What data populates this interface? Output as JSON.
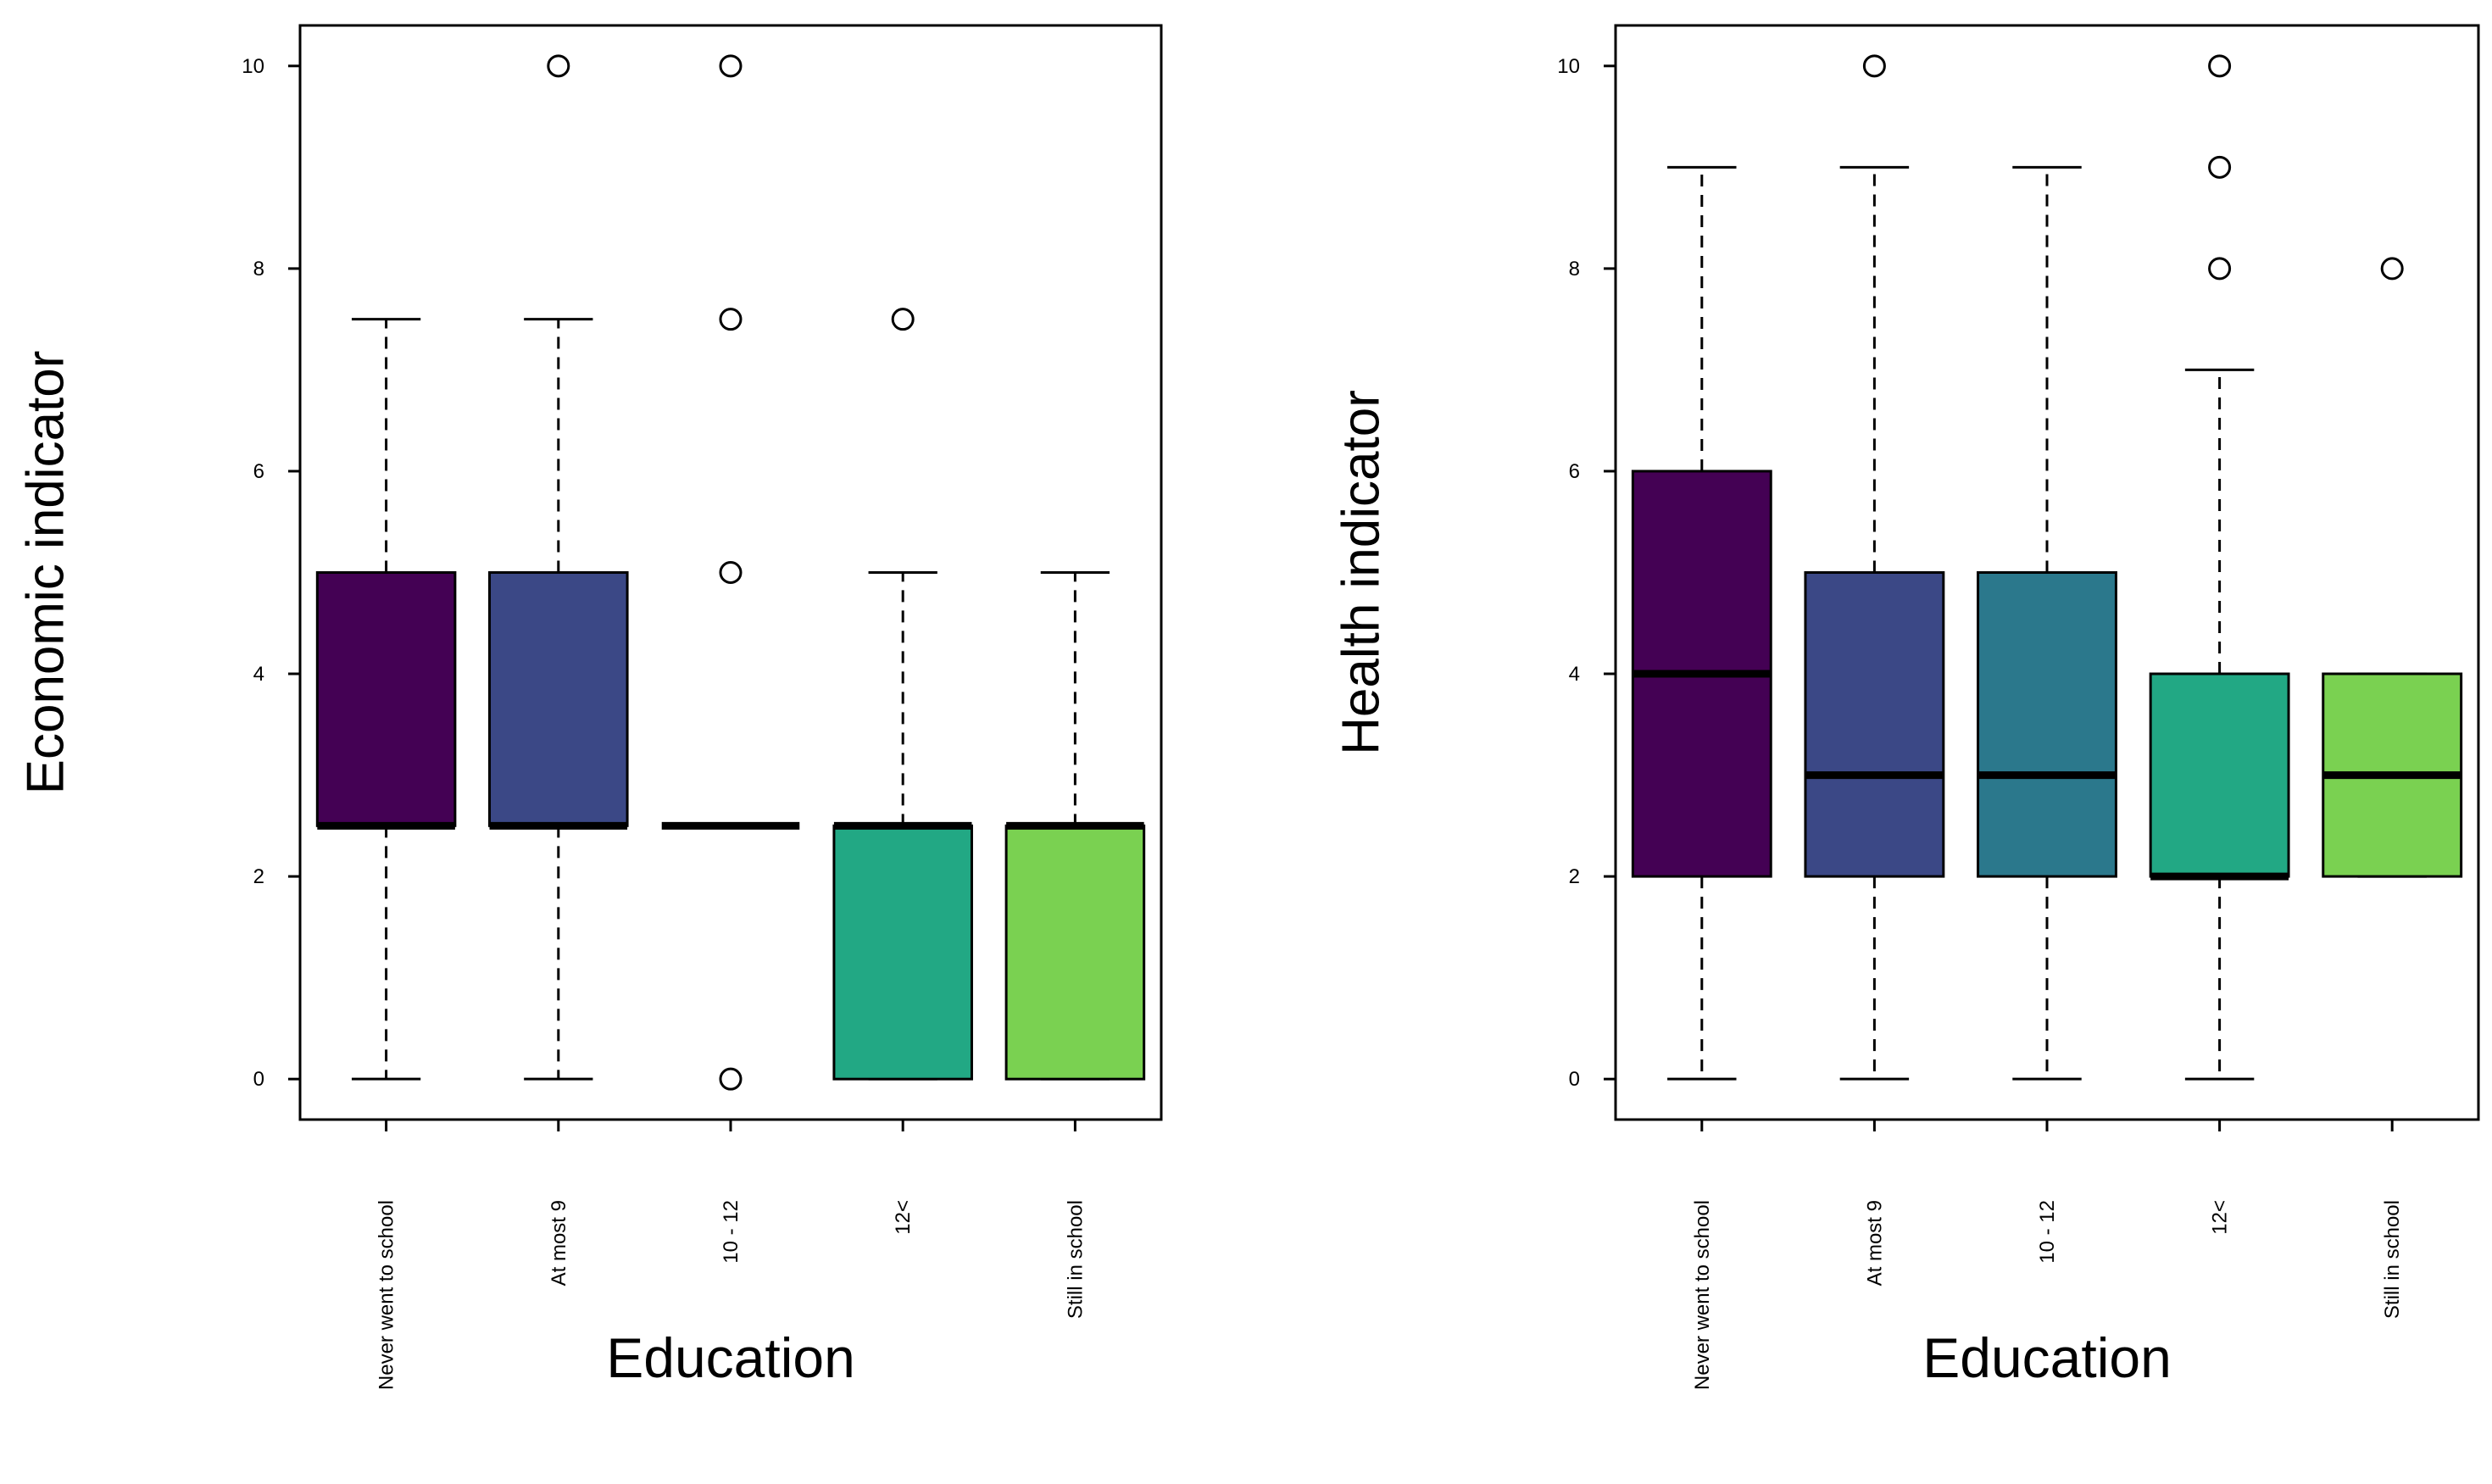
{
  "chart_data": [
    {
      "type": "boxplot",
      "xlabel": "Education",
      "ylabel": "Economic indicator",
      "categories": [
        "Never went to school",
        "At most 9",
        "10 - 12",
        "12<",
        "Still in school"
      ],
      "ylim": [
        -0.4,
        10.4
      ],
      "yticks": [
        0,
        2,
        4,
        6,
        8,
        10
      ],
      "grid": false,
      "boxes": [
        {
          "category": "Never went to school",
          "whisker_low": 0,
          "q1": 2.5,
          "median": 2.5,
          "q3": 5,
          "whisker_high": 7.5,
          "outliers": [],
          "color": "#440154"
        },
        {
          "category": "At most 9",
          "whisker_low": 0,
          "q1": 2.5,
          "median": 2.5,
          "q3": 5,
          "whisker_high": 7.5,
          "outliers": [
            10
          ],
          "color": "#3B4886"
        },
        {
          "category": "10 - 12",
          "whisker_low": 2.5,
          "q1": 2.5,
          "median": 2.5,
          "q3": 2.5,
          "whisker_high": 2.5,
          "outliers": [
            0,
            5,
            7.5,
            10
          ],
          "color": "#2B788C"
        },
        {
          "category": "12<",
          "whisker_low": 0,
          "q1": 0,
          "median": 2.5,
          "q3": 2.5,
          "whisker_high": 5,
          "outliers": [
            7.5
          ],
          "color": "#22A884"
        },
        {
          "category": "Still in school",
          "whisker_low": 0,
          "q1": 0,
          "median": 2.5,
          "q3": 2.5,
          "whisker_high": 5,
          "outliers": [],
          "color": "#7AD151"
        }
      ]
    },
    {
      "type": "boxplot",
      "xlabel": "Education",
      "ylabel": "Health indicator",
      "categories": [
        "Never went to school",
        "At most 9",
        "10 - 12",
        "12<",
        "Still in school"
      ],
      "ylim": [
        -0.4,
        10.4
      ],
      "yticks": [
        0,
        2,
        4,
        6,
        8,
        10
      ],
      "grid": false,
      "boxes": [
        {
          "category": "Never went to school",
          "whisker_low": 0,
          "q1": 2,
          "median": 4,
          "q3": 6,
          "whisker_high": 9,
          "outliers": [],
          "color": "#440154"
        },
        {
          "category": "At most 9",
          "whisker_low": 0,
          "q1": 2,
          "median": 3,
          "q3": 5,
          "whisker_high": 9,
          "outliers": [
            10
          ],
          "color": "#3B4886"
        },
        {
          "category": "10 - 12",
          "whisker_low": 0,
          "q1": 2,
          "median": 3,
          "q3": 5,
          "whisker_high": 9,
          "outliers": [],
          "color": "#2B788C"
        },
        {
          "category": "12<",
          "whisker_low": 0,
          "q1": 2,
          "median": 2,
          "q3": 4,
          "whisker_high": 7,
          "outliers": [
            8,
            9,
            10
          ],
          "color": "#22A884"
        },
        {
          "category": "Still in school",
          "whisker_low": 2,
          "q1": 2,
          "median": 3,
          "q3": 4,
          "whisker_high": 4,
          "outliers": [
            8
          ],
          "color": "#7AD151"
        }
      ]
    }
  ]
}
